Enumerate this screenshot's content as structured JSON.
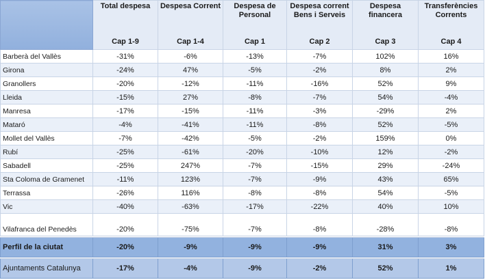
{
  "header": {
    "corner": "",
    "columns": [
      {
        "label": "Total despesa",
        "cap": "Cap 1-9"
      },
      {
        "label": "Despesa Corrent",
        "cap": "Cap 1-4"
      },
      {
        "label": "Despesa de Personal",
        "cap": "Cap 1"
      },
      {
        "label": "Despesa corrent Bens i Serveis",
        "cap": "Cap 2"
      },
      {
        "label": "Despesa financera",
        "cap": "Cap 3"
      },
      {
        "label": "Transferències Corrents",
        "cap": "Cap 4"
      }
    ]
  },
  "rows": [
    {
      "city": "Barberà del Vallès",
      "values": [
        "-31%",
        "-6%",
        "-13%",
        "-7%",
        "102%",
        "16%"
      ]
    },
    {
      "city": "Girona",
      "values": [
        "-24%",
        "47%",
        "-5%",
        "-2%",
        "8%",
        "2%"
      ]
    },
    {
      "city": "Granollers",
      "values": [
        "-20%",
        "-12%",
        "-11%",
        "-16%",
        "52%",
        "9%"
      ]
    },
    {
      "city": "Lleida",
      "values": [
        "-15%",
        "27%",
        "-8%",
        "-7%",
        "54%",
        "-4%"
      ]
    },
    {
      "city": "Manresa",
      "values": [
        "-17%",
        "-15%",
        "-11%",
        "-3%",
        "-29%",
        "2%"
      ]
    },
    {
      "city": "Mataró",
      "values": [
        "-4%",
        "-41%",
        "-11%",
        "-8%",
        "52%",
        "-5%"
      ]
    },
    {
      "city": "Mollet del Vallès",
      "values": [
        "-7%",
        "-42%",
        "-5%",
        "-2%",
        "159%",
        "0%"
      ]
    },
    {
      "city": "Rubí",
      "values": [
        "-25%",
        "-61%",
        "-20%",
        "-10%",
        "12%",
        "-2%"
      ]
    },
    {
      "city": "Sabadell",
      "values": [
        "-25%",
        "247%",
        "-7%",
        "-15%",
        "29%",
        "-24%"
      ]
    },
    {
      "city": "Sta Coloma de Gramenet",
      "values": [
        "-11%",
        "123%",
        "-7%",
        "-9%",
        "43%",
        "65%"
      ]
    },
    {
      "city": "Terrassa",
      "values": [
        "-26%",
        "116%",
        "-8%",
        "-8%",
        "54%",
        "-5%"
      ]
    },
    {
      "city": "Vic",
      "values": [
        "-40%",
        "-63%",
        "-17%",
        "-22%",
        "40%",
        "10%"
      ]
    },
    {
      "city": "Vilafranca del Penedès",
      "values": [
        "-20%",
        "-75%",
        "-7%",
        "-8%",
        "-28%",
        "-8%"
      ]
    }
  ],
  "perfil": {
    "label": "Perfil de la ciutat",
    "values": [
      "-20%",
      "-9%",
      "-9%",
      "-9%",
      "31%",
      "3%"
    ]
  },
  "ajuntaments": {
    "label": "Ajuntaments Catalunya",
    "values": [
      "-17%",
      "-4%",
      "-9%",
      "-2%",
      "52%",
      "1%"
    ]
  }
}
